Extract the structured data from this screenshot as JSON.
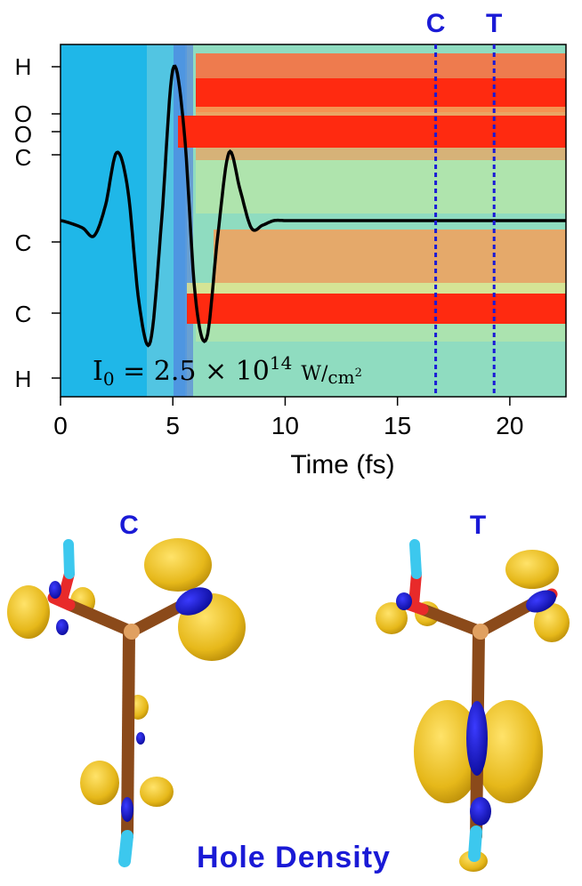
{
  "chart_data": {
    "type": "heatmap",
    "title": "",
    "xlabel": "Time (fs)",
    "ylabel": "",
    "xlim": [
      0,
      22.5
    ],
    "x_ticks": [
      0,
      5,
      10,
      15,
      20
    ],
    "y_tick_labels": [
      "H",
      "O",
      "O",
      "C",
      "C",
      "C",
      "H"
    ],
    "annotation_formula": {
      "lhs_base": "I",
      "lhs_sub": "0",
      "mid": " = 2.5 × 10",
      "sup": "14",
      "unit_num": "W",
      "unit_den": "cm",
      "unit_den_sup": "2"
    },
    "vertical_markers": [
      {
        "label": "C",
        "x": 16.7
      },
      {
        "label": "T",
        "x": 19.3
      }
    ],
    "laser_pulse": {
      "color": "#000000",
      "t": [
        0,
        0.5,
        1,
        1.5,
        2,
        2.5,
        3,
        3.5,
        4,
        4.5,
        5,
        5.5,
        6,
        6.5,
        7,
        7.5,
        8,
        8.5,
        9,
        9.5,
        10,
        11,
        12,
        14,
        16,
        18,
        20,
        22.5
      ],
      "field": [
        0,
        -0.02,
        -0.05,
        -0.1,
        0.1,
        0.45,
        0.2,
        -0.55,
        -0.8,
        0.0,
        1.0,
        0.6,
        -0.5,
        -0.78,
        -0.1,
        0.45,
        0.2,
        -0.05,
        -0.03,
        0,
        0,
        0,
        0,
        0,
        0,
        0,
        0,
        0
      ]
    },
    "colormap": [
      "#1fb7e8",
      "#8fdcc0",
      "#e6e68a",
      "#f4a05a",
      "#ff2a10"
    ]
  },
  "panels": [
    {
      "label": "C"
    },
    {
      "label": "T"
    }
  ],
  "caption": "Hole  Density"
}
